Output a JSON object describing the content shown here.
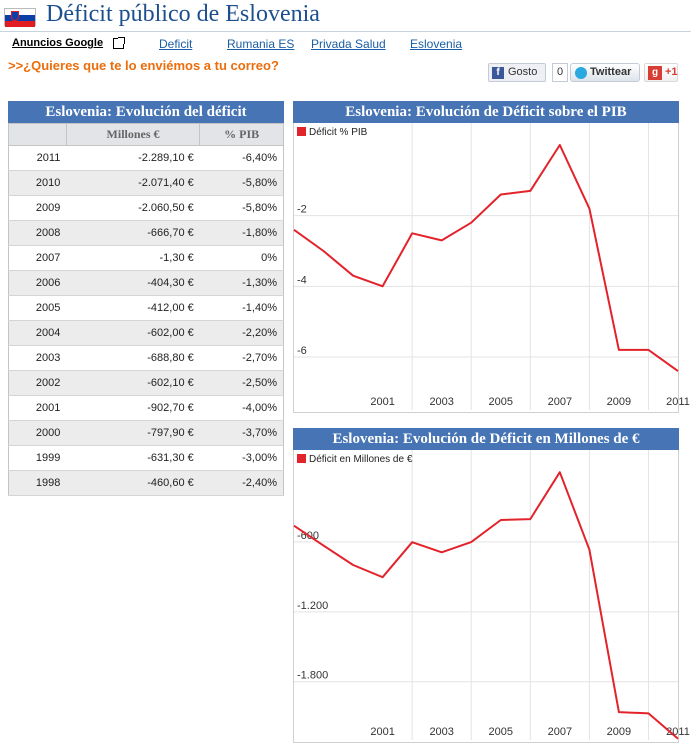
{
  "page": {
    "title": "Déficit público de Eslovenia"
  },
  "ads": {
    "label": "Anuncios Google",
    "links": [
      "Deficit",
      "Rumania ES",
      "Privada Salud",
      "Eslovenia"
    ]
  },
  "subscribe": {
    "text": ">>¿Quieres que te lo enviémos a tu correo?"
  },
  "social": {
    "facebook_label": "Gosto",
    "facebook_count": "0",
    "twitter_label": "Twittear",
    "gplus_label": "+1"
  },
  "colors": {
    "accent": "#4674b4",
    "title": "#1d4f8f",
    "link": "#1a5fa6",
    "orange": "#ec6d0b",
    "line": "#e3232b"
  },
  "table": {
    "title": "Eslovenia: Evolución del déficit",
    "headers": [
      "",
      "Millones €",
      "% PIB"
    ],
    "rows": [
      [
        "2011",
        "-2.289,10 €",
        "-6,40%"
      ],
      [
        "2010",
        "-2.071,40 €",
        "-5,80%"
      ],
      [
        "2009",
        "-2.060,50 €",
        "-5,80%"
      ],
      [
        "2008",
        "-666,70 €",
        "-1,80%"
      ],
      [
        "2007",
        "-1,30 €",
        "0%"
      ],
      [
        "2006",
        "-404,30 €",
        "-1,30%"
      ],
      [
        "2005",
        "-412,00 €",
        "-1,40%"
      ],
      [
        "2004",
        "-602,00 €",
        "-2,20%"
      ],
      [
        "2003",
        "-688,80 €",
        "-2,70%"
      ],
      [
        "2002",
        "-602,10 €",
        "-2,50%"
      ],
      [
        "2001",
        "-902,70 €",
        "-4,00%"
      ],
      [
        "2000",
        "-797,90 €",
        "-3,70%"
      ],
      [
        "1999",
        "-631,30 €",
        "-3,00%"
      ],
      [
        "1998",
        "-460,60 €",
        "-2,40%"
      ]
    ]
  },
  "chart_data": [
    {
      "type": "line",
      "title": "Eslovenia: Evolución de Déficit sobre el PIB",
      "legend": "Déficit % PIB",
      "x": [
        1998,
        1999,
        2000,
        2001,
        2002,
        2003,
        2004,
        2005,
        2006,
        2007,
        2008,
        2009,
        2010,
        2011
      ],
      "values": [
        -2.4,
        -3.0,
        -3.7,
        -4.0,
        -2.5,
        -2.7,
        -2.2,
        -1.4,
        -1.3,
        0,
        -1.8,
        -5.8,
        -5.8,
        -6.4
      ],
      "x_ticks": [
        2001,
        2003,
        2005,
        2007,
        2009,
        2011
      ],
      "y_ticks": [
        -2,
        -4,
        -6
      ],
      "y_tick_labels": [
        "-2",
        "-4",
        "-6"
      ],
      "ylim": [
        -7.5,
        0
      ]
    },
    {
      "type": "line",
      "title": "Eslovenia: Evolución de Déficit en Millones de €",
      "legend": "Déficit en Millones de €",
      "x": [
        1998,
        1999,
        2000,
        2001,
        2002,
        2003,
        2004,
        2005,
        2006,
        2007,
        2008,
        2009,
        2010,
        2011
      ],
      "values": [
        -460.6,
        -631.3,
        -797.9,
        -902.7,
        -602.1,
        -688.8,
        -602.0,
        -412.0,
        -404.3,
        -1.3,
        -666.7,
        -2060.5,
        -2071.4,
        -2289.1
      ],
      "x_ticks": [
        2001,
        2003,
        2005,
        2007,
        2009,
        2011
      ],
      "y_ticks": [
        -600,
        -1200,
        -1800
      ],
      "y_tick_labels": [
        "-600",
        "-1.200",
        "-1.800"
      ],
      "ylim": [
        -2300,
        0
      ]
    }
  ]
}
